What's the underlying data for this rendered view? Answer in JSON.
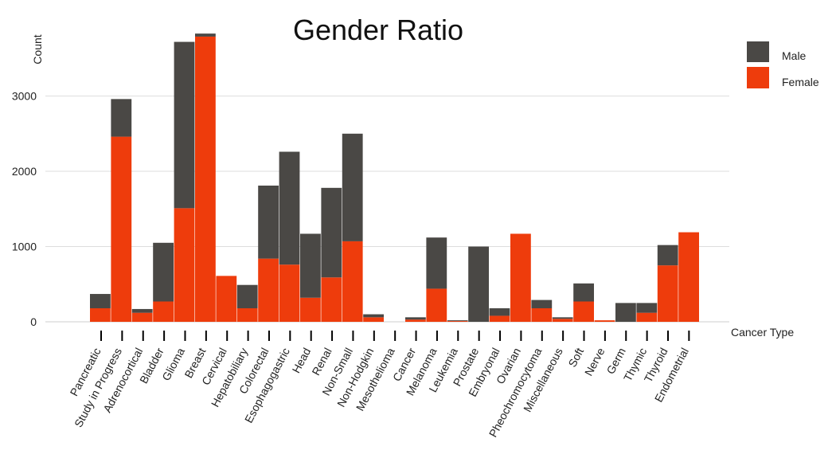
{
  "chart_data": {
    "type": "bar",
    "stacked": true,
    "title": "Gender Ratio",
    "xlabel": "Cancer Type",
    "ylabel": "Count",
    "ylim": [
      0,
      3800
    ],
    "yticks": [
      0,
      1000,
      2000,
      3000
    ],
    "grid": true,
    "legend_position": "top-right",
    "categories": [
      "Pancreatic",
      "Study in Progress",
      "Adrenocortical",
      "Bladder",
      "Glioma",
      "Breast",
      "Cervical",
      "Hepatobiliary",
      "Colorectal",
      "Esophagogastric",
      "Head",
      "Renal",
      "Non-Small",
      "Non-Hodgkin",
      "Mesothelioma",
      "Cancer",
      "Melanoma",
      "Leukemia",
      "Prostate",
      "Embryonal",
      "Ovarian",
      "Pheochromocytoma",
      "Miscellaneous",
      "Soft",
      "Nerve",
      "Germ",
      "Thymic",
      "Thyroid",
      "Endometrial"
    ],
    "bar_categories": [
      "Pancreatic",
      "Study in Progress",
      "Adrenocortical",
      "Bladder",
      "Glioma",
      "Breast",
      "Cervical",
      "Hepatobiliary",
      "Colorectal",
      "Esophagogastric",
      "Head",
      "Renal",
      "Non-Small",
      "Non-Hodgkin",
      "Mesothelioma",
      "Cancer",
      "Melanoma",
      "Leukemia",
      "Prostate",
      "Embryonal",
      "Ovarian",
      "Pheochromocytoma",
      "Miscellaneous",
      "Soft",
      "Nerve",
      "Germ",
      "Thymic",
      "Thyroid",
      "Endometrial"
    ],
    "series": [
      {
        "name": "Female",
        "color": "#ee3c0c",
        "values": [
          180,
          2460,
          120,
          270,
          1510,
          3790,
          610,
          180,
          840,
          760,
          320,
          590,
          1070,
          60,
          0,
          30,
          440,
          10,
          0,
          80,
          1170,
          180,
          40,
          270,
          20,
          0,
          120,
          750,
          1190
        ]
      },
      {
        "name": "Male",
        "color": "#4a4845",
        "values": [
          190,
          500,
          50,
          780,
          2210,
          40,
          0,
          310,
          970,
          1500,
          850,
          1190,
          1430,
          40,
          0,
          30,
          680,
          10,
          1000,
          100,
          0,
          110,
          20,
          240,
          0,
          250,
          130,
          270,
          0
        ]
      }
    ]
  },
  "legend": {
    "male": {
      "label": "Male",
      "color": "#4a4845"
    },
    "female": {
      "label": "Female",
      "color": "#ee3c0c"
    }
  }
}
